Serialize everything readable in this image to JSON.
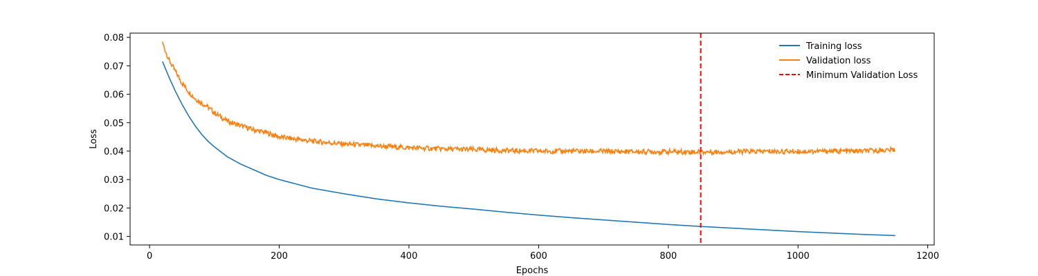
{
  "chart_data": {
    "type": "line",
    "title": "",
    "xlabel": "Epochs",
    "ylabel": "Loss",
    "xlim": [
      -30,
      1210
    ],
    "ylim": [
      0.007,
      0.0815
    ],
    "x_ticks": [
      0,
      200,
      400,
      600,
      800,
      1000,
      1200
    ],
    "y_ticks": [
      0.01,
      0.02,
      0.03,
      0.04,
      0.05,
      0.06,
      0.07,
      0.08
    ],
    "grid": false,
    "legend_position": "top-right",
    "series": [
      {
        "name": "Training loss",
        "color": "#1f77b4",
        "style": "solid",
        "x": [
          20,
          30,
          40,
          50,
          60,
          70,
          80,
          90,
          100,
          120,
          140,
          160,
          180,
          200,
          250,
          300,
          350,
          400,
          450,
          500,
          550,
          600,
          650,
          700,
          750,
          800,
          850,
          900,
          950,
          1000,
          1050,
          1100,
          1150
        ],
        "y": [
          0.0715,
          0.066,
          0.061,
          0.0565,
          0.0525,
          0.049,
          0.046,
          0.0435,
          0.0415,
          0.038,
          0.0355,
          0.0335,
          0.0315,
          0.03,
          0.027,
          0.025,
          0.0232,
          0.0218,
          0.0206,
          0.0196,
          0.0185,
          0.0175,
          0.0166,
          0.0158,
          0.015,
          0.0142,
          0.0135,
          0.0129,
          0.0123,
          0.0117,
          0.0112,
          0.0107,
          0.0103
        ]
      },
      {
        "name": "Validation loss",
        "color": "#ff7f0e",
        "style": "solid",
        "x": [
          20,
          30,
          40,
          50,
          60,
          70,
          80,
          90,
          100,
          120,
          140,
          160,
          180,
          200,
          250,
          300,
          350,
          400,
          450,
          500,
          550,
          600,
          650,
          700,
          750,
          800,
          850,
          900,
          950,
          1000,
          1050,
          1100,
          1150
        ],
        "y": [
          0.078,
          0.072,
          0.068,
          0.064,
          0.061,
          0.0585,
          0.057,
          0.0555,
          0.0535,
          0.0505,
          0.049,
          0.0475,
          0.0465,
          0.045,
          0.0435,
          0.0425,
          0.0418,
          0.0412,
          0.0408,
          0.0405,
          0.0402,
          0.04,
          0.04,
          0.0399,
          0.0398,
          0.0398,
          0.0397,
          0.0398,
          0.0399,
          0.0399,
          0.04,
          0.04,
          0.0405
        ]
      },
      {
        "name": "Minimum Validation Loss",
        "color": "#ff0000",
        "style": "dashed",
        "type": "vline",
        "x_value": 850
      }
    ]
  }
}
